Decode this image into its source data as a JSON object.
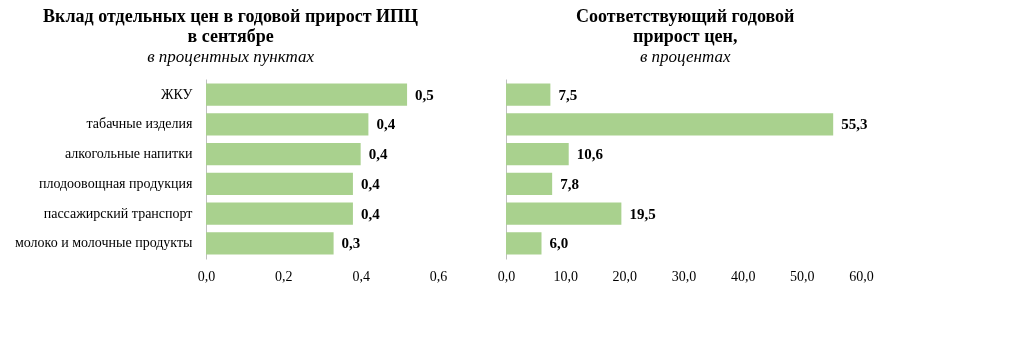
{
  "chart_data": [
    {
      "type": "bar",
      "orientation": "horizontal",
      "title": "Вклад отдельных цен в годовой прирост ИПЦ в сентябре",
      "subtitle": "в процентных пунктах",
      "categories": [
        "ЖКУ",
        "табачные изделия",
        "алкогольные напитки",
        "плодоовощная продукция",
        "пассажирский транспорт",
        "молоко и молочные продукты"
      ],
      "values": [
        0.52,
        0.42,
        0.4,
        0.38,
        0.38,
        0.33
      ],
      "value_labels": [
        "0,5",
        "0,4",
        "0,4",
        "0,4",
        "0,4",
        "0,3"
      ],
      "color": "#a9d18e",
      "xlim": [
        0,
        0.6
      ],
      "xticks": [
        {
          "value": 0,
          "label": "0,0"
        },
        {
          "value": 0.2,
          "label": "0,2"
        },
        {
          "value": 0.4,
          "label": "0,4"
        },
        {
          "value": 0.6,
          "label": "0,6"
        }
      ],
      "grid": false
    },
    {
      "type": "bar",
      "orientation": "horizontal",
      "title": "Соответствующий годовой прирост цен,",
      "subtitle": "в процентах",
      "categories": [
        null,
        null,
        null,
        null,
        null,
        null
      ],
      "values": [
        7.5,
        55.3,
        10.6,
        7.8,
        19.5,
        6.0
      ],
      "value_labels": [
        "7,5",
        "55,3",
        "10,6",
        "7,8",
        "19,5",
        "6,0"
      ],
      "color": "#a9d18e",
      "xlim": [
        0,
        60
      ],
      "xticks": [
        {
          "value": 0,
          "label": "0,0"
        },
        {
          "value": 10,
          "label": "10,0"
        },
        {
          "value": 20,
          "label": "20,0"
        },
        {
          "value": 30,
          "label": "30,0"
        },
        {
          "value": 40,
          "label": "40,0"
        },
        {
          "value": 50,
          "label": "50,0"
        },
        {
          "value": 60,
          "label": "60,0"
        }
      ],
      "tick_labels": "x",
      "grid": false
    }
  ]
}
